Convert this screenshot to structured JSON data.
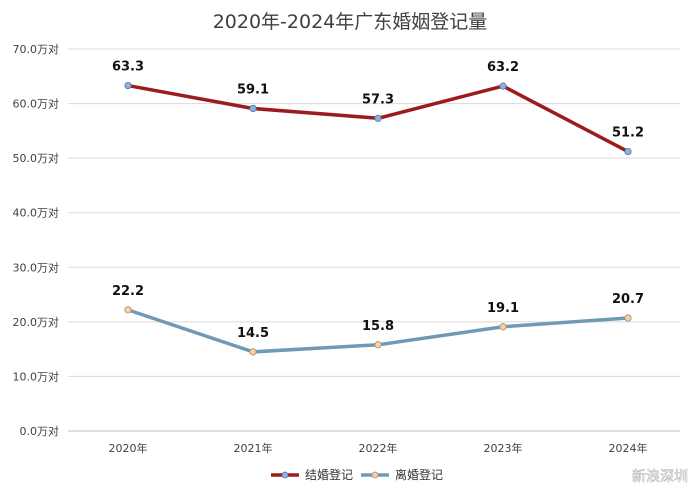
{
  "chart_data": {
    "type": "line",
    "title": "2020年-2024年广东婚姻登记量",
    "categories": [
      "2020年",
      "2021年",
      "2022年",
      "2023年",
      "2024年"
    ],
    "y_ticks": [
      "0.0万对",
      "10.0万对",
      "20.0万对",
      "30.0万对",
      "40.0万对",
      "50.0万对",
      "60.0万对",
      "70.0万对"
    ],
    "ylim": [
      0,
      70
    ],
    "ytick_step": 10,
    "grid": true,
    "legend_position": "bottom-center",
    "series": [
      {
        "name": "结婚登记",
        "values": [
          63.3,
          59.1,
          57.3,
          63.2,
          51.2
        ],
        "color": "#9b1c1c",
        "marker_color": "#8fb0d8",
        "marker_outline": "#5577a8"
      },
      {
        "name": "离婚登记",
        "values": [
          22.2,
          14.5,
          15.8,
          19.1,
          20.7
        ],
        "color": "#6e9ab8",
        "marker_color": "#f2d2ae",
        "marker_outline": "#b58a5e"
      }
    ],
    "data_labels": [
      [
        "63.3",
        "59.1",
        "57.3",
        "63.2",
        "51.2"
      ],
      [
        "22.2",
        "14.5",
        "15.8",
        "19.1",
        "20.7"
      ]
    ]
  },
  "watermark": {
    "text": "新浪深圳"
  }
}
